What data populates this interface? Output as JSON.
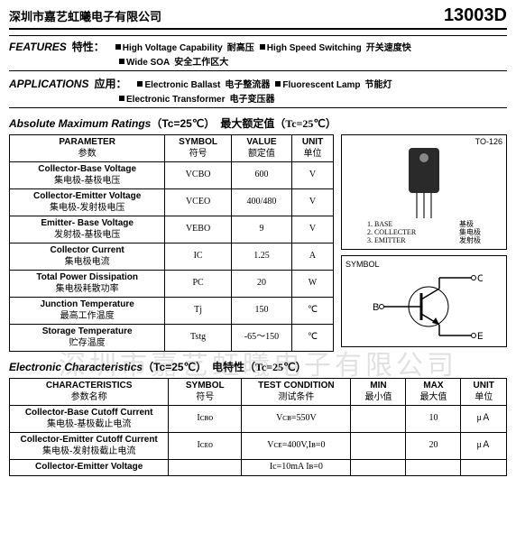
{
  "header": {
    "company": "深圳市嘉艺虹曦电子有限公司",
    "part_no": "13003D"
  },
  "features": {
    "label_en": "FEATURES",
    "label_cn": "特性：",
    "items": [
      {
        "en": "High Voltage Capability",
        "cn": "耐高压"
      },
      {
        "en": "High Speed Switching",
        "cn": "开关速度快"
      },
      {
        "en": "Wide SOA",
        "cn": "安全工作区大"
      }
    ]
  },
  "applications": {
    "label_en": "APPLICATIONS",
    "label_cn": "应用：",
    "items": [
      {
        "en": "Electronic Ballast",
        "cn": "电子整流器"
      },
      {
        "en": "Fluorescent Lamp",
        "cn": "节能灯"
      },
      {
        "en": "Electronic Transformer",
        "cn": "电子变压器"
      }
    ]
  },
  "ratings": {
    "title_en": "Absolute Maximum Ratings",
    "title_cond": "（Tc=25℃）",
    "title_cn": "最大额定值（Tc=25℃）",
    "headers": {
      "param_en": "PARAMETER",
      "param_cn": "参数",
      "symbol_en": "SYMBOL",
      "symbol_cn": "符号",
      "value_en": "VALUE",
      "value_cn": "额定值",
      "unit_en": "UNIT",
      "unit_cn": "单位"
    },
    "rows": [
      {
        "param_en": "Collector-Base Voltage",
        "param_cn": "集电极-基极电压",
        "symbol": "VCBO",
        "value": "600",
        "unit": "V"
      },
      {
        "param_en": "Collector-Emitter Voltage",
        "param_cn": "集电极-发射极电压",
        "symbol": "VCEO",
        "value": "400/480",
        "unit": "V"
      },
      {
        "param_en": "Emitter- Base Voltage",
        "param_cn": "发射极-基极电压",
        "symbol": "VEBO",
        "value": "9",
        "unit": "V"
      },
      {
        "param_en": "Collector Current",
        "param_cn": "集电极电流",
        "symbol": "IC",
        "value": "1.25",
        "unit": "A"
      },
      {
        "param_en": "Total Power Dissipation",
        "param_cn": "集电极耗散功率",
        "symbol": "PC",
        "value": "20",
        "unit": "W"
      },
      {
        "param_en": "Junction Temperature",
        "param_cn": "最高工作温度",
        "symbol": "Tj",
        "value": "150",
        "unit": "℃"
      },
      {
        "param_en": "Storage Temperature",
        "param_cn": "贮存温度",
        "symbol": "Tstg",
        "value": "-65～150",
        "unit": "℃"
      }
    ]
  },
  "package": {
    "label": "TO-126",
    "pins": [
      {
        "n": "1.",
        "en": "BASE",
        "cn": "基极"
      },
      {
        "n": "2.",
        "en": "COLLECTER",
        "cn": "集电极"
      },
      {
        "n": "3.",
        "en": "EMITTER",
        "cn": "发射极"
      }
    ]
  },
  "symbol": {
    "title": "SYMBOL",
    "b": "B",
    "c": "C",
    "e": "E"
  },
  "electrical": {
    "title_en": "Electronic Characteristics",
    "title_cond": "（Tc=25℃）",
    "title_cn": "电特性（Tc=25℃）",
    "headers": {
      "char_en": "CHARACTERISTICS",
      "char_cn": "参数名称",
      "symbol_en": "SYMBOL",
      "symbol_cn": "符号",
      "cond_en": "TEST CONDITION",
      "cond_cn": "测试条件",
      "min_en": "MIN",
      "min_cn": "最小值",
      "max_en": "MAX",
      "max_cn": "最大值",
      "unit_en": "UNIT",
      "unit_cn": "单位"
    },
    "rows": [
      {
        "char_en": "Collector-Base Cutoff Current",
        "char_cn": "集电极-基极截止电流",
        "symbol": "Iᴄʙᴏ",
        "cond": "Vᴄʙ=550V",
        "min": "",
        "max": "10",
        "unit": "μＡ"
      },
      {
        "char_en": "Collector-Emitter Cutoff Current",
        "char_cn": "集电极-发射极截止电流",
        "symbol": "Iᴄᴇᴏ",
        "cond": "Vᴄᴇ=400V,Iʙ=0",
        "min": "",
        "max": "20",
        "unit": "μＡ"
      },
      {
        "char_en": "Collector-Emitter Voltage",
        "char_cn": "",
        "symbol": "",
        "cond": "Ic=10mA Iʙ=0",
        "min": "",
        "max": "",
        "unit": ""
      }
    ]
  },
  "watermark": "深圳市嘉艺虹曦电子有限公司"
}
